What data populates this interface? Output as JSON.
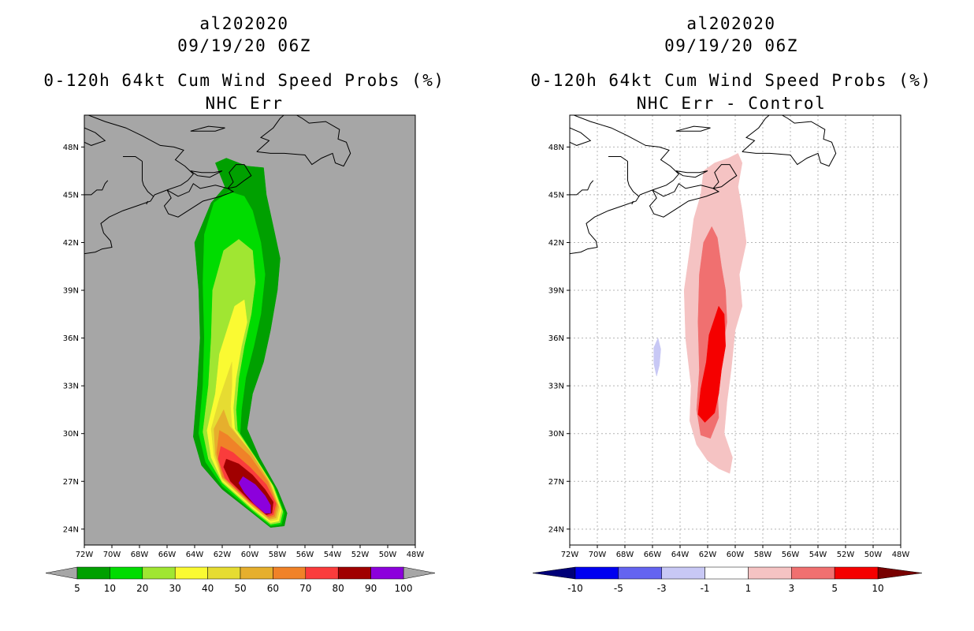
{
  "chart_data": [
    {
      "type": "heatmap",
      "title_lines": [
        "al202020",
        "09/19/20 06Z",
        "0-120h 64kt Cum Wind Speed Probs (%)",
        "NHC Err"
      ],
      "x_ticks": [
        "72W",
        "70W",
        "68W",
        "66W",
        "64W",
        "62W",
        "60W",
        "58W",
        "56W",
        "54W",
        "52W",
        "50W",
        "48W"
      ],
      "y_ticks": [
        "24N",
        "27N",
        "30N",
        "33N",
        "36N",
        "39N",
        "42N",
        "45N",
        "48N"
      ],
      "xlim": [
        -72,
        -48
      ],
      "ylim": [
        23,
        50
      ],
      "colorbar": {
        "levels": [
          "5",
          "10",
          "20",
          "30",
          "40",
          "50",
          "60",
          "70",
          "80",
          "90",
          "100"
        ],
        "colors": [
          "#00a000",
          "#00dc00",
          "#a0e632",
          "#fafa32",
          "#e6dc32",
          "#e6af2d",
          "#f08228",
          "#fa3c3c",
          "#a00000",
          "#8c00dc"
        ],
        "extend_colors": [
          "#a6a6a6",
          "#a6a6a6"
        ]
      },
      "contour_levels": [
        {
          "level": 5,
          "color": "#00a000",
          "poly": [
            [
              -62.5,
              47
            ],
            [
              -61.7,
              47.3
            ],
            [
              -60.2,
              46.8
            ],
            [
              -59,
              46.7
            ],
            [
              -58.8,
              45
            ],
            [
              -58.3,
              43
            ],
            [
              -57.8,
              41
            ],
            [
              -58,
              39
            ],
            [
              -58.5,
              36.5
            ],
            [
              -59,
              34.5
            ],
            [
              -59.8,
              32.5
            ],
            [
              -60.2,
              30.3
            ],
            [
              -59.3,
              28.5
            ],
            [
              -58,
              26.5
            ],
            [
              -57.3,
              25
            ],
            [
              -57.5,
              24.2
            ],
            [
              -58.5,
              24.1
            ],
            [
              -59.8,
              25
            ],
            [
              -62,
              26.5
            ],
            [
              -63.5,
              28
            ],
            [
              -64.1,
              29.8
            ],
            [
              -63.8,
              33
            ],
            [
              -63.6,
              36
            ],
            [
              -63.7,
              39
            ],
            [
              -64,
              42
            ],
            [
              -62.8,
              44.5
            ],
            [
              -61.8,
              45.5
            ],
            [
              -62.5,
              47
            ]
          ]
        },
        {
          "level": 10,
          "color": "#00dc00",
          "poly": [
            [
              -62.6,
              44.5
            ],
            [
              -61.5,
              45.2
            ],
            [
              -60.4,
              44.9
            ],
            [
              -59.8,
              44
            ],
            [
              -59.2,
              42
            ],
            [
              -58.9,
              40
            ],
            [
              -59.2,
              37.5
            ],
            [
              -59.7,
              35.5
            ],
            [
              -60.3,
              33.5
            ],
            [
              -60.6,
              31.5
            ],
            [
              -60.7,
              30
            ],
            [
              -59.5,
              28.4
            ],
            [
              -58.2,
              26.6
            ],
            [
              -57.5,
              25
            ],
            [
              -57.7,
              24.3
            ],
            [
              -58.5,
              24.2
            ],
            [
              -59.8,
              25.1
            ],
            [
              -62,
              26.7
            ],
            [
              -63.2,
              28.2
            ],
            [
              -63.7,
              30
            ],
            [
              -63.4,
              33
            ],
            [
              -63.3,
              36
            ],
            [
              -63.4,
              39.5
            ],
            [
              -63.3,
              42.5
            ],
            [
              -62.6,
              44.5
            ]
          ]
        },
        {
          "level": 20,
          "color": "#a0e632",
          "poly": [
            [
              -61.9,
              41.5
            ],
            [
              -60.8,
              42.2
            ],
            [
              -59.8,
              41.5
            ],
            [
              -59.6,
              39.5
            ],
            [
              -59.9,
              37.5
            ],
            [
              -60.4,
              35.5
            ],
            [
              -60.8,
              33.5
            ],
            [
              -61,
              31.5
            ],
            [
              -60.9,
              30.2
            ],
            [
              -59.6,
              28.5
            ],
            [
              -58.3,
              26.7
            ],
            [
              -57.6,
              25.1
            ],
            [
              -57.8,
              24.4
            ],
            [
              -58.5,
              24.3
            ],
            [
              -59.8,
              25.2
            ],
            [
              -62,
              26.9
            ],
            [
              -63,
              28.4
            ],
            [
              -63.4,
              30.1
            ],
            [
              -63,
              33
            ],
            [
              -62.8,
              36
            ],
            [
              -62.7,
              39
            ],
            [
              -61.9,
              41.5
            ]
          ]
        },
        {
          "level": 30,
          "color": "#fafa32",
          "poly": [
            [
              -61.1,
              38
            ],
            [
              -60.4,
              38.4
            ],
            [
              -60.2,
              37
            ],
            [
              -60.6,
              35.5
            ],
            [
              -61,
              33.5
            ],
            [
              -61.2,
              31.6
            ],
            [
              -61.1,
              30.3
            ],
            [
              -59.7,
              28.6
            ],
            [
              -58.4,
              26.8
            ],
            [
              -57.7,
              25.2
            ],
            [
              -57.9,
              24.5
            ],
            [
              -58.5,
              24.4
            ],
            [
              -59.8,
              25.3
            ],
            [
              -62,
              27
            ],
            [
              -62.8,
              28.5
            ],
            [
              -63.1,
              30.2
            ],
            [
              -62.5,
              32.5
            ],
            [
              -62.2,
              35
            ],
            [
              -61.1,
              38
            ]
          ]
        },
        {
          "level": 40,
          "color": "#e6dc32",
          "poly": [
            [
              -61.3,
              34.5
            ],
            [
              -61.3,
              33
            ],
            [
              -61.4,
              31.7
            ],
            [
              -61.3,
              30.4
            ],
            [
              -59.8,
              28.7
            ],
            [
              -58.5,
              26.9
            ],
            [
              -57.8,
              25.3
            ],
            [
              -58,
              24.6
            ],
            [
              -58.5,
              24.5
            ],
            [
              -59.8,
              25.4
            ],
            [
              -62,
              27.1
            ],
            [
              -62.6,
              28.6
            ],
            [
              -62.8,
              30.3
            ],
            [
              -62.2,
              32.2
            ],
            [
              -61.3,
              34.5
            ]
          ]
        },
        {
          "level": 50,
          "color": "#e6af2d",
          "poly": [
            [
              -61.9,
              31.5
            ],
            [
              -61.5,
              30.5
            ],
            [
              -59.9,
              28.8
            ],
            [
              -58.6,
              27
            ],
            [
              -57.9,
              25.4
            ],
            [
              -58.1,
              24.7
            ],
            [
              -58.6,
              24.6
            ],
            [
              -59.9,
              25.5
            ],
            [
              -62,
              27.2
            ],
            [
              -62.5,
              28.7
            ],
            [
              -62.6,
              30.3
            ],
            [
              -61.9,
              31.5
            ]
          ]
        },
        {
          "level": 60,
          "color": "#f08228",
          "poly": [
            [
              -62.2,
              30.2
            ],
            [
              -61.6,
              29.9
            ],
            [
              -60,
              28.6
            ],
            [
              -58.7,
              27
            ],
            [
              -58,
              25.5
            ],
            [
              -58.2,
              24.8
            ],
            [
              -58.6,
              24.7
            ],
            [
              -59.9,
              25.6
            ],
            [
              -62,
              27.3
            ],
            [
              -62.4,
              28.8
            ],
            [
              -62.2,
              30.2
            ]
          ]
        },
        {
          "level": 70,
          "color": "#fa3c3c",
          "poly": [
            [
              -62.1,
              29.2
            ],
            [
              -61.2,
              28.8
            ],
            [
              -60,
              27.9
            ],
            [
              -58.8,
              26.8
            ],
            [
              -58.1,
              25.6
            ],
            [
              -58.3,
              24.9
            ],
            [
              -58.7,
              24.8
            ],
            [
              -60,
              25.7
            ],
            [
              -61.8,
              27.2
            ],
            [
              -62.3,
              28.4
            ],
            [
              -62.1,
              29.2
            ]
          ]
        },
        {
          "level": 80,
          "color": "#a00000",
          "poly": [
            [
              -61.7,
              28.4
            ],
            [
              -60.8,
              28.1
            ],
            [
              -59.8,
              27.4
            ],
            [
              -58.9,
              26.5
            ],
            [
              -58.3,
              25.7
            ],
            [
              -58.4,
              25
            ],
            [
              -58.8,
              24.9
            ],
            [
              -60,
              25.8
            ],
            [
              -61.4,
              27
            ],
            [
              -61.9,
              27.9
            ],
            [
              -61.7,
              28.4
            ]
          ]
        },
        {
          "level": 90,
          "color": "#8c00dc",
          "poly": [
            [
              -60.5,
              27.3
            ],
            [
              -59.6,
              26.8
            ],
            [
              -58.9,
              26.1
            ],
            [
              -58.5,
              25.5
            ],
            [
              -58.5,
              25
            ],
            [
              -58.9,
              25
            ],
            [
              -59.7,
              25.6
            ],
            [
              -60.4,
              26.3
            ],
            [
              -60.8,
              26.9
            ],
            [
              -60.5,
              27.3
            ]
          ]
        }
      ]
    },
    {
      "type": "heatmap",
      "title_lines": [
        "al202020",
        "09/19/20 06Z",
        "0-120h 64kt Cum Wind Speed Probs (%)",
        "NHC Err - Control"
      ],
      "x_ticks": [
        "72W",
        "70W",
        "68W",
        "66W",
        "64W",
        "62W",
        "60W",
        "58W",
        "56W",
        "54W",
        "52W",
        "50W",
        "48W"
      ],
      "y_ticks": [
        "24N",
        "27N",
        "30N",
        "33N",
        "36N",
        "39N",
        "42N",
        "45N",
        "48N"
      ],
      "xlim": [
        -72,
        -48
      ],
      "ylim": [
        23,
        50
      ],
      "colorbar": {
        "levels": [
          "-10",
          "-5",
          "-3",
          "-1",
          "1",
          "3",
          "5",
          "10"
        ],
        "colors": [
          "#0000f0",
          "#6464f0",
          "#c8c8f5",
          "#ffffff",
          "#f5c3c3",
          "#f07070",
          "#f50000"
        ],
        "extend_colors": [
          "#000078",
          "#780000"
        ]
      },
      "contour_levels": [
        {
          "level": 1,
          "color": "#f5c3c3",
          "poly": [
            [
              -61.5,
              47
            ],
            [
              -60.5,
              47.3
            ],
            [
              -59.8,
              47.6
            ],
            [
              -59.5,
              47
            ],
            [
              -59.8,
              45.5
            ],
            [
              -59.5,
              44
            ],
            [
              -59.2,
              42
            ],
            [
              -59.7,
              40
            ],
            [
              -59.5,
              38
            ],
            [
              -60,
              36.5
            ],
            [
              -60.3,
              34
            ],
            [
              -60.6,
              32
            ],
            [
              -60.8,
              30
            ],
            [
              -60.2,
              28.5
            ],
            [
              -60.4,
              27.5
            ],
            [
              -61.2,
              27.8
            ],
            [
              -62,
              28.3
            ],
            [
              -62.8,
              29.3
            ],
            [
              -63.3,
              30.8
            ],
            [
              -63.2,
              33
            ],
            [
              -63.6,
              36
            ],
            [
              -63.7,
              39
            ],
            [
              -63.3,
              41.5
            ],
            [
              -63,
              43.5
            ],
            [
              -62.5,
              45
            ],
            [
              -62.3,
              46.5
            ],
            [
              -61.5,
              47
            ]
          ]
        },
        {
          "level": 3,
          "color": "#f07070",
          "poly": [
            [
              -61.7,
              43
            ],
            [
              -61.3,
              42.3
            ],
            [
              -61,
              40.5
            ],
            [
              -60.7,
              39
            ],
            [
              -60.6,
              37
            ],
            [
              -61,
              35
            ],
            [
              -61.3,
              33
            ],
            [
              -61.2,
              31
            ],
            [
              -61.8,
              29.7
            ],
            [
              -62.5,
              29.9
            ],
            [
              -62.8,
              31.5
            ],
            [
              -62.6,
              34
            ],
            [
              -62.7,
              37
            ],
            [
              -62.6,
              40
            ],
            [
              -62.3,
              42
            ],
            [
              -61.7,
              43
            ]
          ]
        },
        {
          "level": 5,
          "color": "#f50000",
          "poly": [
            [
              -61.2,
              38
            ],
            [
              -60.8,
              37.5
            ],
            [
              -60.7,
              35.5
            ],
            [
              -61,
              34
            ],
            [
              -61.2,
              32.5
            ],
            [
              -61.5,
              31.3
            ],
            [
              -62.2,
              30.7
            ],
            [
              -62.7,
              31.2
            ],
            [
              -62.5,
              32.8
            ],
            [
              -62.1,
              34.5
            ],
            [
              -61.9,
              36.2
            ],
            [
              -61.2,
              38
            ]
          ]
        },
        {
          "level": -1,
          "color": "#c8c8f5",
          "poly": [
            [
              -65.6,
              36
            ],
            [
              -65.4,
              35.3
            ],
            [
              -65.5,
              34.3
            ],
            [
              -65.7,
              33.6
            ],
            [
              -65.9,
              34.4
            ],
            [
              -65.9,
              35.4
            ],
            [
              -65.6,
              36
            ]
          ]
        }
      ]
    }
  ]
}
